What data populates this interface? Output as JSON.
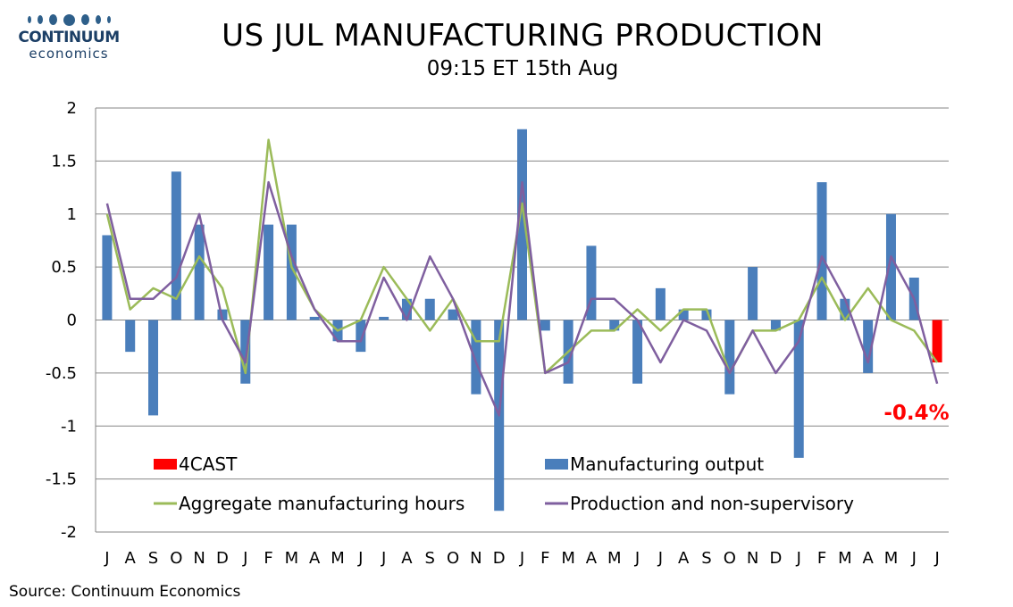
{
  "logo": {
    "name": "CONTINUUM",
    "sub": "economics"
  },
  "header": {
    "title": "US JUL MANUFACTURING PRODUCTION",
    "subtitle": "09:15 ET 15th Aug"
  },
  "source": "Source: Continuum Economics",
  "colors": {
    "output_bar": "#4a7ebb",
    "forecast_bar": "#ff0000",
    "hours_line": "#9bbb59",
    "production_line": "#7f5f9f",
    "forecast_label": "#ff0000",
    "grid": "#868686",
    "logo": "#1c3f66"
  },
  "chart_data": {
    "type": "bar",
    "categories": [
      "J",
      "A",
      "S",
      "O",
      "N",
      "D",
      "J",
      "F",
      "M",
      "A",
      "M",
      "J",
      "J",
      "A",
      "S",
      "O",
      "N",
      "D",
      "J",
      "F",
      "M",
      "A",
      "M",
      "J",
      "J",
      "A",
      "S",
      "O",
      "N",
      "D",
      "J",
      "F",
      "M",
      "A",
      "M",
      "J",
      "J"
    ],
    "ylim": [
      -2,
      2
    ],
    "y_ticks": [
      2,
      1.5,
      1,
      0.5,
      0,
      -0.5,
      -1,
      -1.5,
      -2
    ],
    "grid": true,
    "legend_placement": "bottom",
    "series": [
      {
        "name": "Manufacturing output",
        "kind": "bar",
        "values": [
          0.8,
          -0.3,
          -0.9,
          1.4,
          0.9,
          0.1,
          -0.6,
          0.9,
          0.9,
          0.03,
          -0.2,
          -0.3,
          0.03,
          0.2,
          0.2,
          0.1,
          -0.7,
          -1.8,
          1.8,
          -0.1,
          -0.6,
          0.7,
          -0.1,
          -0.6,
          0.3,
          0.1,
          0.1,
          -0.7,
          0.5,
          -0.1,
          -1.3,
          1.3,
          0.2,
          -0.5,
          1.0,
          0.4,
          null
        ]
      },
      {
        "name": "4CAST",
        "kind": "bar",
        "values": [
          null,
          null,
          null,
          null,
          null,
          null,
          null,
          null,
          null,
          null,
          null,
          null,
          null,
          null,
          null,
          null,
          null,
          null,
          null,
          null,
          null,
          null,
          null,
          null,
          null,
          null,
          null,
          null,
          null,
          null,
          null,
          null,
          null,
          null,
          null,
          null,
          -0.4
        ]
      },
      {
        "name": "Aggregate manufacturing hours",
        "kind": "line",
        "values": [
          1.0,
          0.1,
          0.3,
          0.2,
          0.6,
          0.3,
          -0.5,
          1.7,
          0.5,
          0.1,
          -0.1,
          0.0,
          0.5,
          0.2,
          -0.1,
          0.2,
          -0.2,
          -0.2,
          1.1,
          -0.5,
          -0.3,
          -0.1,
          -0.1,
          0.1,
          -0.1,
          0.1,
          0.1,
          -0.5,
          -0.1,
          -0.1,
          0.0,
          0.4,
          0.0,
          0.3,
          0.0,
          -0.1,
          -0.4
        ]
      },
      {
        "name": "Production and non-supervisory",
        "kind": "line",
        "values": [
          1.1,
          0.2,
          0.2,
          0.4,
          1.0,
          0.0,
          -0.4,
          1.3,
          0.6,
          0.1,
          -0.2,
          -0.2,
          0.4,
          0.0,
          0.6,
          0.2,
          -0.4,
          -0.9,
          1.3,
          -0.5,
          -0.4,
          0.2,
          0.2,
          0.0,
          -0.4,
          0.0,
          -0.1,
          -0.5,
          -0.1,
          -0.5,
          -0.2,
          0.6,
          0.2,
          -0.4,
          0.6,
          0.2,
          -0.6
        ]
      }
    ],
    "annotations": [
      {
        "text": "-0.4%"
      }
    ]
  }
}
